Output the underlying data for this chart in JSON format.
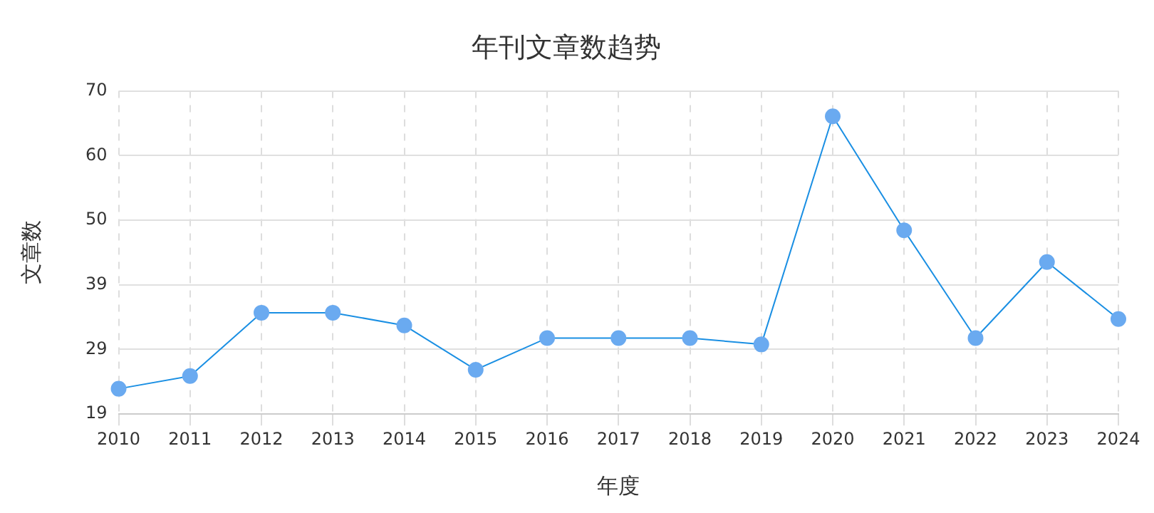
{
  "chart_data": {
    "type": "line",
    "title": "年刊文章数趋势",
    "xlabel": "年度",
    "ylabel": "文章数",
    "categories": [
      "2010",
      "2011",
      "2012",
      "2013",
      "2014",
      "2015",
      "2016",
      "2017",
      "2018",
      "2019",
      "2020",
      "2021",
      "2022",
      "2023",
      "2024"
    ],
    "series": [
      {
        "color": "#1a8fe3",
        "values": [
          23,
          25,
          35,
          35,
          33,
          26,
          31,
          31,
          31,
          30,
          66,
          48,
          31,
          43,
          34
        ]
      }
    ],
    "ylim": [
      19,
      70
    ],
    "yticks": [
      19,
      {
        "value": 29.2,
        "label": "29"
      },
      {
        "value": 39.4,
        "label": "39"
      },
      {
        "value": 49.6,
        "label": "50"
      },
      {
        "value": 59.8,
        "label": "60"
      },
      70
    ],
    "grid": true,
    "legend": false,
    "marker": "circle",
    "line_style": "solid"
  }
}
